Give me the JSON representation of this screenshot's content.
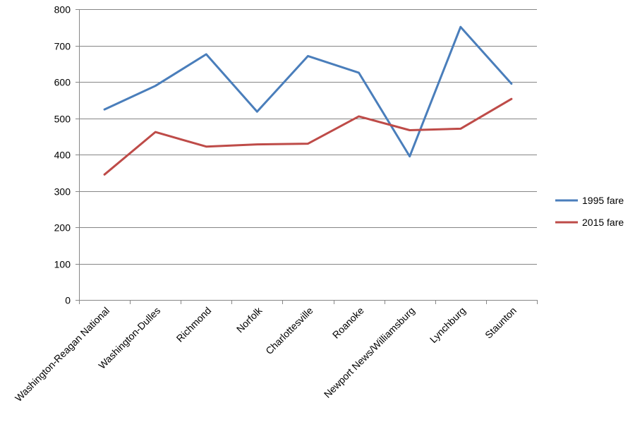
{
  "chart_data": {
    "type": "line",
    "title": "",
    "xlabel": "",
    "ylabel": "",
    "ylim": [
      0,
      800
    ],
    "yticks": [
      0,
      100,
      200,
      300,
      400,
      500,
      600,
      700,
      800
    ],
    "ytick_labels": [
      "0",
      "100",
      "200",
      "300",
      "400",
      "500",
      "600",
      "700",
      "800"
    ],
    "grid": true,
    "legend_position": "right",
    "categories": [
      "Washington-Reagan National",
      "Washington-Dulles",
      "Richmond",
      "Norfolk",
      "Charlottesville",
      "Roanoke",
      "Newport News/Williamsburg",
      "Lynchburg",
      "Staunton"
    ],
    "series": [
      {
        "name": "1995 fare",
        "color": "#4a7ebb",
        "values": [
          524,
          589,
          676,
          518,
          671,
          625,
          395,
          751,
          595
        ]
      },
      {
        "name": "2015 fare",
        "color": "#be4b48",
        "values": [
          345,
          462,
          422,
          428,
          430,
          505,
          467,
          471,
          553
        ]
      }
    ]
  }
}
